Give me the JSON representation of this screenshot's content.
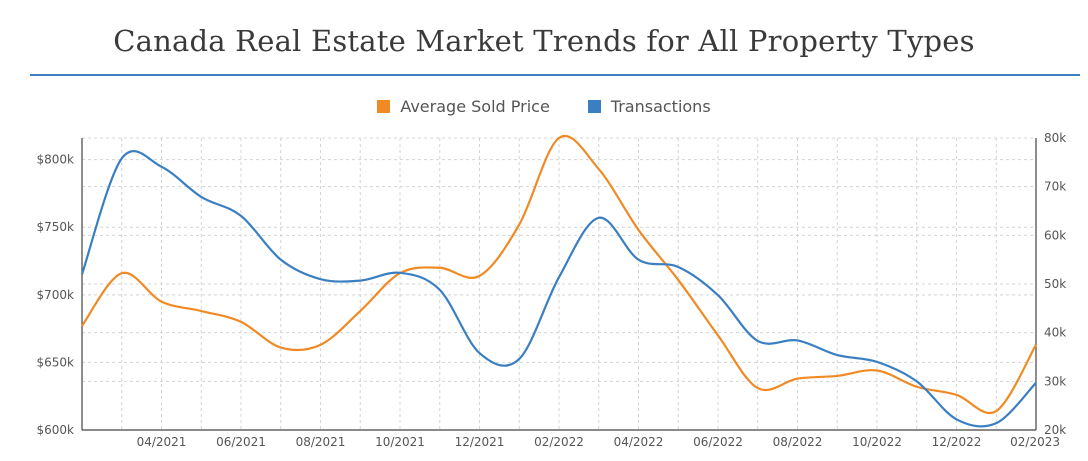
{
  "page": {
    "title": "Canada Real Estate Market Trends for All Property Types"
  },
  "chart_data": {
    "type": "line",
    "title": "Canada Real Estate Market Trends for All Property Types",
    "legend_position": "top-center",
    "grid": true,
    "x_ticks": [
      "04/2021",
      "06/2021",
      "08/2021",
      "10/2021",
      "12/2021",
      "02/2022",
      "04/2022",
      "06/2022",
      "08/2022",
      "10/2022",
      "12/2022",
      "02/2023"
    ],
    "y_left": {
      "ticks": [
        "$600k",
        "$650k",
        "$700k",
        "$750k",
        "$800k"
      ],
      "range": [
        600000,
        816000
      ]
    },
    "y_right": {
      "ticks": [
        "20k",
        "30k",
        "40k",
        "50k",
        "60k",
        "70k",
        "80k"
      ],
      "range": [
        20000,
        80000
      ]
    },
    "x": [
      "2021-02",
      "2021-03",
      "2021-04",
      "2021-05",
      "2021-06",
      "2021-07",
      "2021-08",
      "2021-09",
      "2021-10",
      "2021-11",
      "2021-12",
      "2022-01",
      "2022-02",
      "2022-03",
      "2022-04",
      "2022-05",
      "2022-06",
      "2022-07",
      "2022-08",
      "2022-09",
      "2022-10",
      "2022-11",
      "2022-12",
      "2023-01",
      "2023-02"
    ],
    "series": [
      {
        "name": "Average Sold Price",
        "color": "#f08a24",
        "axis": "left",
        "values": [
          677000,
          716000,
          695000,
          688000,
          680000,
          661000,
          663000,
          688000,
          716000,
          720000,
          714000,
          752000,
          816000,
          793000,
          748000,
          711000,
          670000,
          631000,
          638000,
          640000,
          644000,
          632000,
          626000,
          614000,
          663000
        ]
      },
      {
        "name": "Transactions",
        "color": "#3a7fc1",
        "axis": "right",
        "values": [
          52000,
          75800,
          74100,
          67900,
          64000,
          55000,
          51000,
          50700,
          52300,
          48800,
          35800,
          34600,
          51400,
          63600,
          55000,
          53500,
          47700,
          38300,
          38400,
          35400,
          34000,
          30000,
          22200,
          21400,
          29700
        ]
      }
    ]
  }
}
